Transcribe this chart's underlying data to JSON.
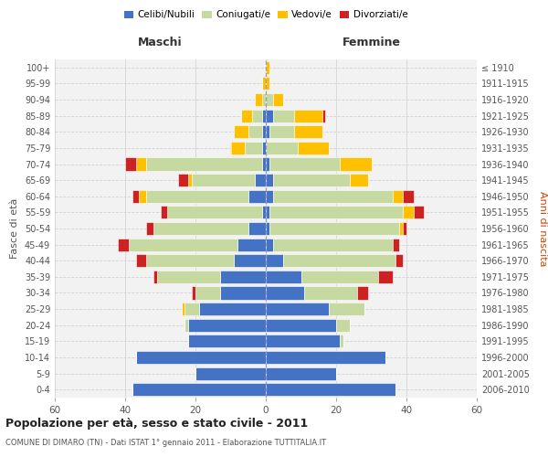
{
  "age_groups": [
    "0-4",
    "5-9",
    "10-14",
    "15-19",
    "20-24",
    "25-29",
    "30-34",
    "35-39",
    "40-44",
    "45-49",
    "50-54",
    "55-59",
    "60-64",
    "65-69",
    "70-74",
    "75-79",
    "80-84",
    "85-89",
    "90-94",
    "95-99",
    "100+"
  ],
  "birth_years": [
    "2006-2010",
    "2001-2005",
    "1996-2000",
    "1991-1995",
    "1986-1990",
    "1981-1985",
    "1976-1980",
    "1971-1975",
    "1966-1970",
    "1961-1965",
    "1956-1960",
    "1951-1955",
    "1946-1950",
    "1941-1945",
    "1936-1940",
    "1931-1935",
    "1926-1930",
    "1921-1925",
    "1916-1920",
    "1911-1915",
    "≤ 1910"
  ],
  "colors": {
    "celibi": "#4472c4",
    "coniugati": "#c5d9a0",
    "vedovi": "#ffc000",
    "divorziati": "#cc2222"
  },
  "maschi": {
    "celibi": [
      38,
      20,
      37,
      22,
      22,
      19,
      13,
      13,
      9,
      8,
      5,
      1,
      5,
      3,
      1,
      1,
      1,
      1,
      0,
      0,
      0
    ],
    "coniugati": [
      0,
      0,
      0,
      0,
      1,
      4,
      7,
      18,
      25,
      31,
      27,
      27,
      29,
      18,
      33,
      5,
      4,
      3,
      1,
      0,
      0
    ],
    "vedovi": [
      0,
      0,
      0,
      0,
      0,
      1,
      0,
      0,
      0,
      0,
      0,
      0,
      2,
      1,
      3,
      4,
      4,
      3,
      2,
      1,
      0
    ],
    "divorziati": [
      0,
      0,
      0,
      0,
      0,
      0,
      1,
      1,
      3,
      3,
      2,
      2,
      2,
      3,
      3,
      0,
      0,
      0,
      0,
      0,
      0
    ]
  },
  "femmine": {
    "celibi": [
      37,
      20,
      34,
      21,
      20,
      18,
      11,
      10,
      5,
      2,
      1,
      1,
      2,
      2,
      1,
      0,
      1,
      2,
      0,
      0,
      0
    ],
    "coniugati": [
      0,
      0,
      0,
      1,
      4,
      10,
      15,
      22,
      32,
      34,
      37,
      38,
      34,
      22,
      20,
      9,
      7,
      6,
      2,
      0,
      0
    ],
    "vedovi": [
      0,
      0,
      0,
      0,
      0,
      0,
      0,
      0,
      0,
      0,
      1,
      3,
      3,
      5,
      9,
      9,
      8,
      8,
      3,
      1,
      1
    ],
    "divorziati": [
      0,
      0,
      0,
      0,
      0,
      0,
      3,
      4,
      2,
      2,
      1,
      3,
      3,
      0,
      0,
      0,
      0,
      1,
      0,
      0,
      0
    ]
  },
  "xlim": 60,
  "title": "Popolazione per età, sesso e stato civile - 2011",
  "subtitle": "COMUNE DI DIMARO (TN) - Dati ISTAT 1° gennaio 2011 - Elaborazione TUTTITALIA.IT",
  "ylabel_left": "Fasce di età",
  "ylabel_right": "Anni di nascita",
  "xlabel_left": "Maschi",
  "xlabel_right": "Femmine",
  "legend_labels": [
    "Celibi/Nubili",
    "Coniugati/e",
    "Vedovi/e",
    "Divorziati/e"
  ],
  "bg_color": "#f2f2f2",
  "grid_color": "#d0d0d0"
}
